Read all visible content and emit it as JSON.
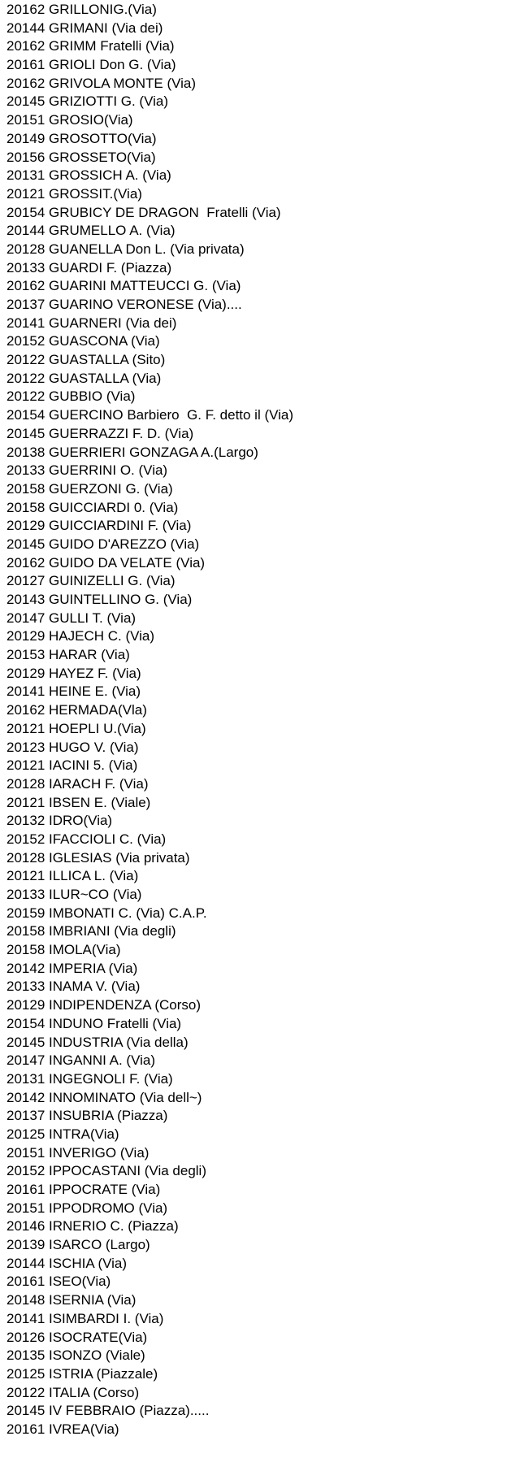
{
  "entries": [
    "20162 GRILLONIG.(Via)",
    "20144 GRIMANI (Via dei)",
    "20162 GRIMM Fratelli (Via)",
    "20161 GRIOLI Don G. (Via)",
    "20162 GRIVOLA MONTE (Via)",
    "20145 GRIZIOTTI G. (Via)",
    "20151 GROSIO(Via)",
    "20149 GROSOTTO(Via)",
    "20156 GROSSETO(Via)",
    "20131 GROSSICH A. (Via)",
    "20121 GROSSIT.(Via)",
    "20154 GRUBICY DE DRAGON  Fratelli (Via)",
    "20144 GRUMELLO A. (Via)",
    "20128 GUANELLA Don L. (Via privata)",
    "20133 GUARDI F. (Piazza)",
    "20162 GUARINI MATTEUCCI G. (Via)",
    "20137 GUARINO VERONESE (Via)....",
    "20141 GUARNERI (Via dei)",
    "20152 GUASCONA (Via)",
    "20122 GUASTALLA (Sito)",
    "20122 GUASTALLA (Via)",
    "20122 GUBBIO (Via)",
    "20154 GUERCINO Barbiero  G. F. detto il (Via)",
    "20145 GUERRAZZI F. D. (Via)",
    "20138 GUERRIERI GONZAGA A.(Largo)",
    "20133 GUERRINI O. (Via)",
    "20158 GUERZONI G. (Via)",
    "20158 GUICCIARDI 0. (Via)",
    "20129 GUICCIARDINI F. (Via)",
    "20145 GUIDO D'AREZZO (Via)",
    "20162 GUIDO DA VELATE (Via)",
    "20127 GUINIZELLI G. (Via)",
    "20143 GUINTELLINO G. (Via)",
    "20147 GULLI T. (Via)",
    "20129 HAJECH C. (Via)",
    "20153 HARAR (Via)",
    "20129 HAYEZ F. (Via)",
    "20141 HEINE E. (Via)",
    "20162 HERMADA(Vla)",
    "20121 HOEPLI U.(Via)",
    "20123 HUGO V. (Via)",
    "20121 IACINI 5. (Via)",
    "20128 IARACH F. (Via)",
    "20121 IBSEN E. (Viale)",
    "20132 IDRO(Via)",
    "20152 IFACCIOLI C. (Via)",
    "20128 IGLESIAS (Via privata)",
    "20121 ILLICA L. (Via)",
    "20133 ILUR~CO (Via)",
    "20159 IMBONATI C. (Via) C.A.P.",
    "20158 IMBRIANI (Via degli)",
    "20158 IMOLA(Via)",
    "20142 IMPERIA (Via)",
    "20133 INAMA V. (Via)",
    "20129 INDIPENDENZA (Corso)",
    "20154 INDUNO Fratelli (Via)",
    "20145 INDUSTRIA (Via della)",
    "20147 INGANNI A. (Via)",
    "20131 INGEGNOLI F. (Via)",
    "20142 INNOMINATO (Via dell~)",
    "20137 INSUBRIA (Piazza)",
    "20125 INTRA(Via)",
    "20151 INVERIGO (Via)",
    "20152 IPPOCASTANI (Via degli)",
    "20161 IPPOCRATE (Via)",
    "20151 IPPODROMO (Via)",
    "20146 IRNERIO C. (Piazza)",
    "20139 ISARCO (Largo)",
    "20144 ISCHIA (Via)",
    "20161 ISEO(Via)",
    "20148 ISERNIA (Via)",
    "20141 ISIMBARDI I. (Via)",
    "20126 ISOCRATE(Via)",
    "20135 ISONZO (Viale)",
    "20125 ISTRIA (Piazzale)",
    "20122 ITALIA (Corso)",
    "20145 IV FEBBRAIO (Piazza).....",
    "20161 IVREA(Via)"
  ]
}
